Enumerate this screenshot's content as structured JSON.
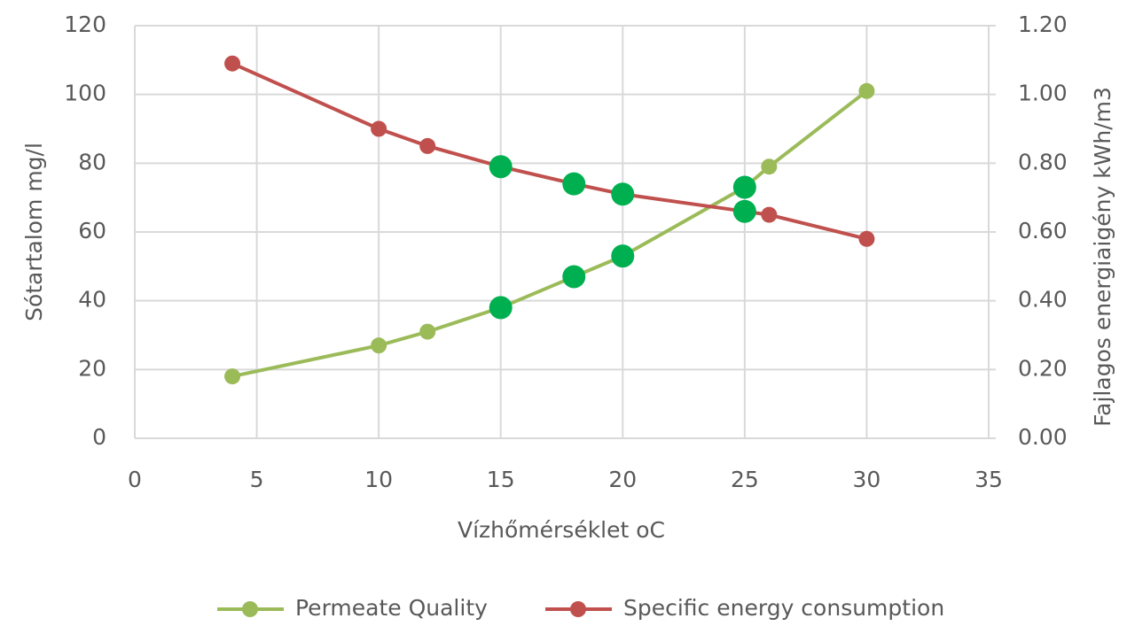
{
  "chart_data": {
    "type": "line",
    "x_label": "Vízhőmérséklet oC",
    "y_label": "Sótartalom mg/l",
    "y2_label": "Fajlagos energiaigény kWh/m3",
    "xlim": [
      0,
      35
    ],
    "xticks": [
      0,
      5,
      10,
      15,
      20,
      25,
      30,
      35
    ],
    "ylim": [
      0,
      120
    ],
    "yticks": [
      0,
      20,
      40,
      60,
      80,
      100,
      120
    ],
    "y2lim": [
      0,
      1.2
    ],
    "y2ticks": [
      {
        "value": 0,
        "label": "0.00"
      },
      {
        "value": 0.2,
        "label": "0.20"
      },
      {
        "value": 0.4,
        "label": "0.40"
      },
      {
        "value": 0.6,
        "label": "0.60"
      },
      {
        "value": 0.8,
        "label": "0.80"
      },
      {
        "value": 1.0,
        "label": "1.00"
      },
      {
        "value": 1.2,
        "label": "1.20"
      }
    ],
    "grid": true,
    "legend": "bottom",
    "highlight_color": "#00b050",
    "highlight_x": [
      15,
      18,
      20,
      25
    ],
    "x": [
      4,
      10,
      12,
      15,
      18,
      20,
      25,
      26,
      30
    ],
    "series": [
      {
        "name": "Permeate Quality",
        "color": "#9bbb59",
        "values": [
          18,
          27,
          31,
          38,
          47,
          53,
          73,
          79,
          101
        ]
      },
      {
        "name": "Specific energy consumption",
        "color": "#c0504d",
        "axis": "y2",
        "values": [
          1.09,
          0.9,
          0.85,
          0.79,
          0.74,
          0.71,
          0.66,
          0.65,
          0.58
        ]
      }
    ]
  }
}
